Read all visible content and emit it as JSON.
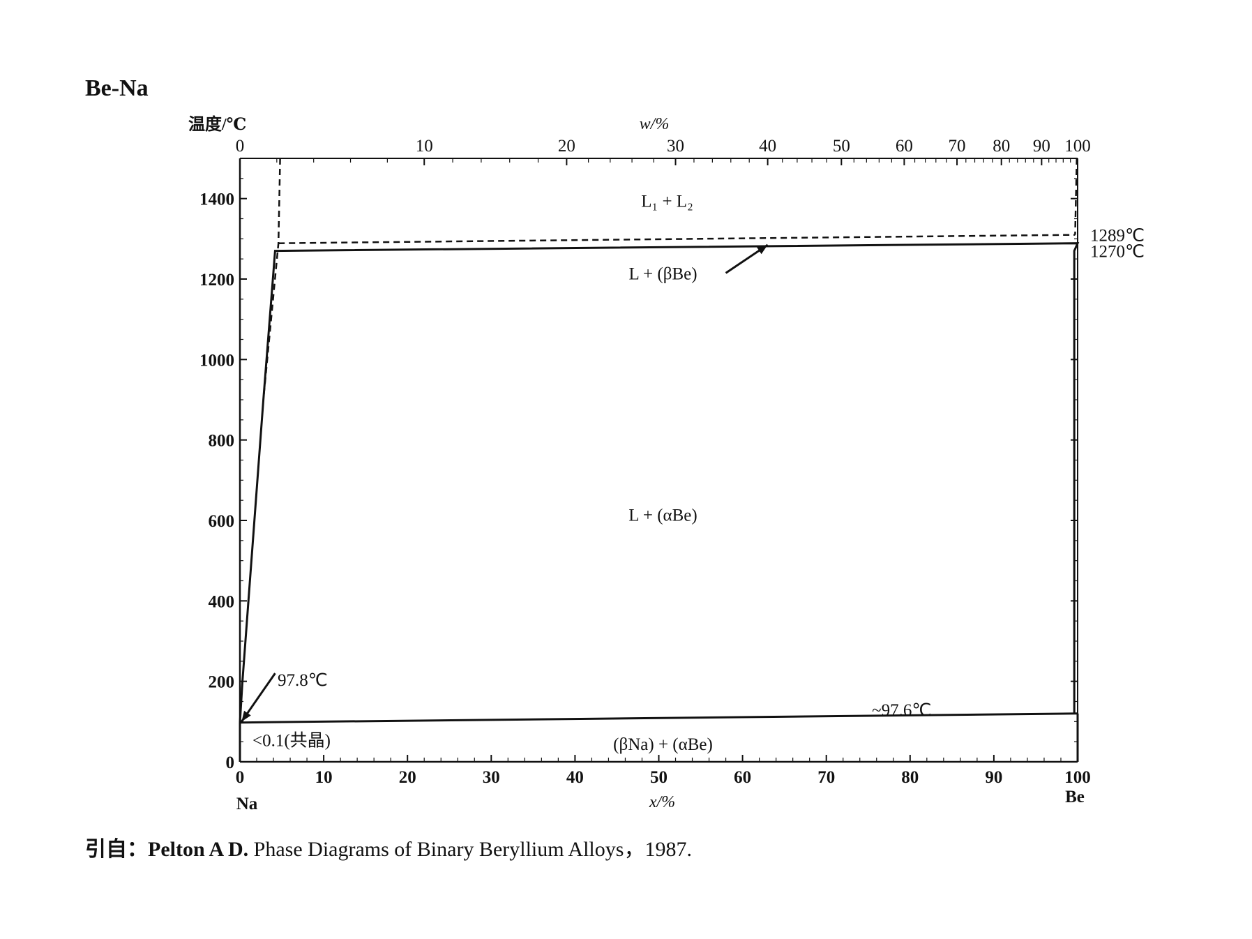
{
  "title": "Be-Na",
  "y_axis_label": "温度/℃",
  "citation": {
    "prefix": "引自：Pelton A D.",
    "text": " Phase Diagrams of Binary Beryllium Alloys，1987."
  },
  "chart_data": {
    "type": "line",
    "xlabel": "x/%",
    "x2label": "w/%",
    "ylabel": "温度/℃",
    "xlim": [
      0,
      100
    ],
    "ylim": [
      0,
      1500
    ],
    "x_ticks": [
      0,
      10,
      20,
      30,
      40,
      50,
      60,
      70,
      80,
      90,
      100
    ],
    "y_ticks": [
      0,
      200,
      400,
      600,
      800,
      1000,
      1200,
      1400
    ],
    "top_axis_ticks": [
      {
        "label": "0",
        "x": 0
      },
      {
        "label": "10",
        "x": 22
      },
      {
        "label": "20",
        "x": 39
      },
      {
        "label": "30",
        "x": 52
      },
      {
        "label": "40",
        "x": 63
      },
      {
        "label": "50",
        "x": 71.8
      },
      {
        "label": "60",
        "x": 79.3
      },
      {
        "label": "70",
        "x": 85.6
      },
      {
        "label": "80",
        "x": 90.9
      },
      {
        "label": "90",
        "x": 95.7
      },
      {
        "label": "100",
        "x": 100
      }
    ],
    "left_end_label": "Na",
    "right_end_label": "Be",
    "series": [
      {
        "style": "solid",
        "points": [
          [
            0,
            97.8
          ],
          [
            0.3,
            200
          ],
          [
            2.8,
            900
          ],
          [
            4.2,
            1270
          ],
          [
            100,
            1289
          ],
          [
            99.6,
            1270
          ],
          [
            99.6,
            120
          ]
        ]
      },
      {
        "style": "solid",
        "points": [
          [
            0,
            97.6
          ],
          [
            100,
            120
          ]
        ]
      },
      {
        "style": "solid",
        "points": [
          [
            0,
            0
          ],
          [
            0,
            97.8
          ]
        ]
      },
      {
        "style": "solid",
        "points": [
          [
            100,
            0
          ],
          [
            100,
            120
          ]
        ]
      },
      {
        "style": "dashed",
        "points": [
          [
            4.8,
            1500
          ],
          [
            4.6,
            1289
          ],
          [
            2.8,
            900
          ]
        ]
      },
      {
        "style": "dashed",
        "points": [
          [
            4.6,
            1289
          ],
          [
            99.7,
            1310
          ]
        ]
      },
      {
        "style": "dashed",
        "points": [
          [
            99.9,
            1500
          ],
          [
            99.7,
            1310
          ]
        ]
      }
    ],
    "annotations": [
      {
        "text": "L₁ + L₂",
        "x": 51,
        "y": 1395
      },
      {
        "text": "1289℃",
        "x": 101.5,
        "y": 1310
      },
      {
        "text": "1270℃",
        "x": 101.5,
        "y": 1270
      },
      {
        "text": "L + (βBe)",
        "x": 50.5,
        "y": 1215
      },
      {
        "text": "L + (αBe)",
        "x": 50.5,
        "y": 615
      },
      {
        "text": "97.8℃",
        "x": 4.5,
        "y": 205
      },
      {
        "text": "~97.6℃",
        "x": 79,
        "y": 130
      },
      {
        "text": "<0.1(共晶)",
        "x": 1.5,
        "y": 55
      },
      {
        "text": "(βNa) + (αBe)",
        "x": 50.5,
        "y": 45
      }
    ],
    "arrows": [
      {
        "from": [
          58,
          1215
        ],
        "to": [
          63,
          1285
        ]
      },
      {
        "from": [
          4.2,
          220
        ],
        "to": [
          0.2,
          100
        ]
      }
    ]
  }
}
